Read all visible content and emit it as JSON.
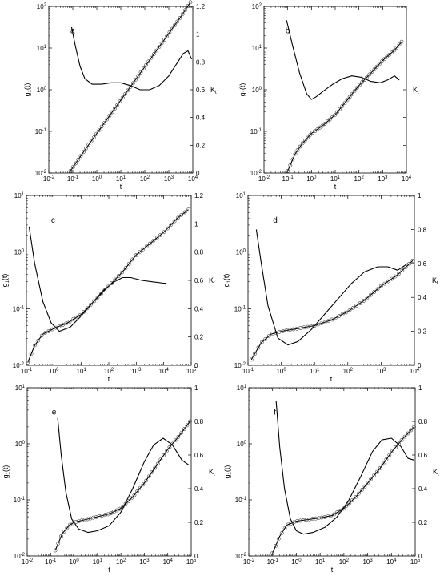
{
  "figure": {
    "panel_ylabel_left": "g",
    "panel_ylabel_left_sub": "1",
    "panel_ylabel_left_tail": "(t)",
    "panel_ylabel_right": "K",
    "panel_ylabel_right_sub": "t",
    "panel_xlabel": "t"
  },
  "chart_data": [
    {
      "panel": "a",
      "type": "line",
      "xlabel": "t",
      "ylabel": "g1(t)",
      "ylabel_right": "Kt",
      "xlim_exp": [
        -2,
        4
      ],
      "ylim_exp": [
        -2,
        2
      ],
      "ylim_right": [
        0,
        1.2
      ],
      "xscale": "log",
      "yscale": "log",
      "x_ticks": [
        "10-2",
        "10-1",
        "100",
        "101",
        "102",
        "103",
        "104"
      ],
      "y_ticks": [
        "10-2",
        "10-1",
        "100",
        "101",
        "102"
      ],
      "y_right_ticks": [
        "0",
        "0.2",
        "0.4",
        "0.6",
        "0.8",
        "1",
        "1.2"
      ],
      "series": [
        {
          "role": "msd-points",
          "axis": "left",
          "marker": "circle",
          "log10x_range": [
            -1.1,
            3.9
          ],
          "log10y_range": [
            -1.95,
            2.1
          ]
        },
        {
          "role": "msd-fit",
          "axis": "left",
          "log10x": [
            -1.1,
            -0.5,
            0,
            0.5,
            1,
            1.5,
            2,
            2.5,
            3,
            3.5,
            3.9
          ],
          "log10y": [
            -1.95,
            -1.45,
            -1.05,
            -0.65,
            -0.25,
            0.15,
            0.55,
            0.95,
            1.35,
            1.75,
            2.1
          ]
        },
        {
          "role": "kurtosis",
          "axis": "right",
          "log10x": [
            -1.05,
            -0.9,
            -0.7,
            -0.5,
            -0.2,
            0.2,
            0.6,
            1.0,
            1.4,
            1.8,
            2.2,
            2.6,
            3.0,
            3.3,
            3.6,
            3.8,
            3.95
          ],
          "kt": [
            1.05,
            0.92,
            0.77,
            0.68,
            0.64,
            0.64,
            0.65,
            0.65,
            0.63,
            0.6,
            0.6,
            0.63,
            0.7,
            0.78,
            0.86,
            0.88,
            0.82
          ]
        }
      ]
    },
    {
      "panel": "b",
      "type": "line",
      "xlabel": "t",
      "ylabel": "g1(t)",
      "ylabel_right": "Kt",
      "xlim_exp": [
        -2,
        4
      ],
      "ylim_exp": [
        -2,
        2
      ],
      "ylim_right": [
        0,
        1.2
      ],
      "xscale": "log",
      "yscale": "log",
      "x_ticks": [
        "10-2",
        "10-1",
        "100",
        "101",
        "102",
        "103",
        "104"
      ],
      "y_ticks": [
        "10-2",
        "10-1",
        "100",
        "101",
        "102"
      ],
      "y_right_ticks": [],
      "series": [
        {
          "role": "msd-points",
          "axis": "left",
          "marker": "circle",
          "log10x_range": [
            -1.0,
            3.8
          ],
          "log10y_range": [
            -1.95,
            1.15
          ]
        },
        {
          "role": "msd-fit",
          "axis": "left",
          "log10x": [
            -1.0,
            -0.7,
            -0.4,
            0,
            0.5,
            1,
            1.5,
            2,
            2.5,
            3,
            3.5,
            3.8
          ],
          "log10y": [
            -1.95,
            -1.55,
            -1.3,
            -1.05,
            -0.85,
            -0.6,
            -0.25,
            0.1,
            0.4,
            0.7,
            0.95,
            1.15
          ]
        },
        {
          "role": "kurtosis",
          "axis": "right",
          "log10x": [
            -1.05,
            -0.8,
            -0.5,
            -0.2,
            0,
            0.2,
            0.5,
            0.9,
            1.3,
            1.7,
            2.1,
            2.5,
            2.9,
            3.2,
            3.5,
            3.7
          ],
          "kt": [
            1.1,
            0.92,
            0.72,
            0.57,
            0.53,
            0.55,
            0.59,
            0.64,
            0.68,
            0.7,
            0.69,
            0.66,
            0.65,
            0.67,
            0.7,
            0.67
          ]
        }
      ]
    },
    {
      "panel": "c",
      "type": "line",
      "xlabel": "t",
      "ylabel": "g1(t)",
      "ylabel_right": "Kt",
      "xlim_exp": [
        -1,
        5
      ],
      "ylim_exp": [
        -2,
        1
      ],
      "ylim_right": [
        0,
        1.2
      ],
      "xscale": "log",
      "yscale": "log",
      "x_ticks": [
        "10-1",
        "100",
        "101",
        "102",
        "103",
        "104",
        "105"
      ],
      "y_ticks": [
        "10-2",
        "10-1",
        "100",
        "101"
      ],
      "y_right_ticks": [
        "0",
        "0.2",
        "0.4",
        "0.6",
        "0.8",
        "1",
        "1.2"
      ],
      "series": [
        {
          "role": "msd-points",
          "axis": "left",
          "marker": "circle",
          "log10x_range": [
            -0.95,
            4.9
          ],
          "log10y_range": [
            -1.95,
            0.75
          ]
        },
        {
          "role": "msd-fit",
          "axis": "left",
          "log10x": [
            -0.95,
            -0.7,
            -0.4,
            0,
            0.5,
            1,
            1.5,
            2,
            2.5,
            3,
            3.5,
            4,
            4.5,
            4.9
          ],
          "log10y": [
            -1.95,
            -1.65,
            -1.45,
            -1.35,
            -1.25,
            -1.1,
            -0.85,
            -0.6,
            -0.35,
            -0.05,
            0.15,
            0.35,
            0.6,
            0.75
          ]
        },
        {
          "role": "kurtosis",
          "axis": "right",
          "log10x": [
            -0.9,
            -0.7,
            -0.4,
            -0.1,
            0.2,
            0.6,
            1.0,
            1.4,
            1.8,
            2.2,
            2.5,
            2.8,
            3.2,
            3.6,
            4.0,
            4.1
          ],
          "kt": [
            0.98,
            0.72,
            0.45,
            0.3,
            0.24,
            0.27,
            0.35,
            0.44,
            0.53,
            0.59,
            0.62,
            0.62,
            0.6,
            0.59,
            0.58,
            0.58
          ]
        }
      ]
    },
    {
      "panel": "d",
      "type": "line",
      "xlabel": "t",
      "ylabel": "g1(t)",
      "ylabel_right": "Kt",
      "xlim_exp": [
        -1,
        4
      ],
      "ylim_exp": [
        -2,
        1
      ],
      "ylim_right": [
        0,
        1
      ],
      "xscale": "log",
      "yscale": "log",
      "x_ticks": [
        "10-1",
        "100",
        "101",
        "102",
        "103",
        "104"
      ],
      "y_ticks": [
        "10-2",
        "10-1",
        "100",
        "101"
      ],
      "y_right_ticks": [
        "0",
        "0.2",
        "0.4",
        "0.6",
        "0.8",
        "1"
      ],
      "series": [
        {
          "role": "msd-points",
          "axis": "left",
          "marker": "circle",
          "log10x_range": [
            -0.9,
            3.95
          ],
          "log10y_range": [
            -1.9,
            -0.15
          ]
        },
        {
          "role": "msd-fit",
          "axis": "left",
          "log10x": [
            -0.9,
            -0.6,
            -0.3,
            0,
            0.5,
            1,
            1.5,
            2,
            2.5,
            3,
            3.5,
            3.95
          ],
          "log10y": [
            -1.9,
            -1.6,
            -1.45,
            -1.4,
            -1.35,
            -1.3,
            -1.2,
            -1.05,
            -0.85,
            -0.6,
            -0.4,
            -0.15
          ]
        },
        {
          "role": "kurtosis",
          "axis": "right",
          "log10x": [
            -0.75,
            -0.6,
            -0.4,
            -0.1,
            0.2,
            0.5,
            0.9,
            1.3,
            1.7,
            2.1,
            2.5,
            2.9,
            3.2,
            3.5,
            3.8
          ],
          "kt": [
            0.8,
            0.6,
            0.35,
            0.16,
            0.12,
            0.14,
            0.21,
            0.3,
            0.39,
            0.48,
            0.55,
            0.58,
            0.58,
            0.56,
            0.6
          ]
        }
      ]
    },
    {
      "panel": "e",
      "type": "line",
      "xlabel": "t",
      "ylabel": "g1(t)",
      "ylabel_right": "Kt",
      "xlim_exp": [
        -2,
        5
      ],
      "ylim_exp": [
        -2,
        1
      ],
      "ylim_right": [
        0,
        1
      ],
      "xscale": "log",
      "yscale": "log",
      "x_ticks": [
        "10-2",
        "10-1",
        "100",
        "101",
        "102",
        "103",
        "104",
        "105"
      ],
      "y_ticks": [
        "10-2",
        "10-1",
        "100",
        "101"
      ],
      "y_right_ticks": [
        "0",
        "0.2",
        "0.4",
        "0.6",
        "0.8",
        "1"
      ],
      "series": [
        {
          "role": "msd-points",
          "axis": "left",
          "marker": "circle",
          "log10x_range": [
            -0.8,
            4.95
          ],
          "log10y_range": [
            -1.9,
            0.4
          ]
        },
        {
          "role": "msd-fit",
          "axis": "left",
          "log10x": [
            -0.8,
            -0.5,
            -0.2,
            0,
            0.5,
            1,
            1.5,
            2,
            2.5,
            3,
            3.5,
            4,
            4.5,
            4.95
          ],
          "log10y": [
            -1.9,
            -1.6,
            -1.45,
            -1.4,
            -1.35,
            -1.3,
            -1.25,
            -1.15,
            -0.95,
            -0.7,
            -0.4,
            -0.1,
            0.15,
            0.4
          ]
        },
        {
          "role": "kurtosis",
          "axis": "right",
          "log10x": [
            -0.7,
            -0.55,
            -0.35,
            -0.1,
            0.2,
            0.6,
            1.0,
            1.5,
            2.0,
            2.5,
            3.0,
            3.4,
            3.8,
            4.2,
            4.6,
            4.9
          ],
          "kt": [
            0.82,
            0.6,
            0.38,
            0.22,
            0.16,
            0.14,
            0.15,
            0.18,
            0.26,
            0.4,
            0.56,
            0.66,
            0.7,
            0.66,
            0.57,
            0.54
          ]
        }
      ]
    },
    {
      "panel": "f",
      "type": "line",
      "xlabel": "t",
      "ylabel": "g1(t)",
      "ylabel_right": "Kt",
      "xlim_exp": [
        -2,
        5
      ],
      "ylim_exp": [
        -2,
        1
      ],
      "ylim_right": [
        0,
        1
      ],
      "xscale": "log",
      "yscale": "log",
      "x_ticks": [
        "10-2",
        "10-1",
        "100",
        "101",
        "102",
        "103",
        "104",
        "105"
      ],
      "y_ticks": [
        "10-2",
        "10-1",
        "100",
        "101"
      ],
      "y_right_ticks": [
        "0",
        "0.2",
        "0.4",
        "0.6",
        "0.8",
        "1"
      ],
      "series": [
        {
          "role": "msd-points",
          "axis": "left",
          "marker": "circle",
          "log10x_range": [
            -1.0,
            4.95
          ],
          "log10y_range": [
            -1.95,
            0.3
          ]
        },
        {
          "role": "msd-fit",
          "axis": "left",
          "log10x": [
            -1.0,
            -0.7,
            -0.4,
            0,
            0.5,
            1,
            1.5,
            2,
            2.5,
            3,
            3.5,
            4,
            4.5,
            4.95
          ],
          "log10y": [
            -1.95,
            -1.65,
            -1.45,
            -1.38,
            -1.35,
            -1.32,
            -1.28,
            -1.15,
            -0.95,
            -0.7,
            -0.45,
            -0.15,
            0.1,
            0.3
          ]
        },
        {
          "role": "kurtosis",
          "axis": "right",
          "log10x": [
            -0.85,
            -0.7,
            -0.5,
            -0.25,
            0,
            0.3,
            0.7,
            1.2,
            1.7,
            2.2,
            2.7,
            3.2,
            3.6,
            4.0,
            4.4,
            4.7,
            4.95
          ],
          "kt": [
            0.92,
            0.65,
            0.4,
            0.22,
            0.15,
            0.13,
            0.14,
            0.17,
            0.23,
            0.33,
            0.47,
            0.62,
            0.69,
            0.7,
            0.65,
            0.58,
            0.57
          ]
        }
      ]
    }
  ]
}
